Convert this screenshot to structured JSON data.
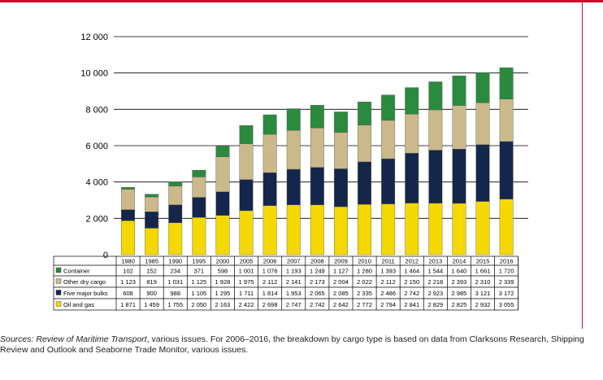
{
  "chart_data": {
    "type": "bar",
    "stacked": true,
    "categories": [
      "1980",
      "1985",
      "1990",
      "1995",
      "2000",
      "2005",
      "2006",
      "2007",
      "2008",
      "2009",
      "2010",
      "2011",
      "2012",
      "2013",
      "2014",
      "2015",
      "2016"
    ],
    "series": [
      {
        "name": "Oil and gas",
        "color": "#f5d800",
        "values": [
          1871,
          1459,
          1755,
          2050,
          2163,
          2422,
          2698,
          2747,
          2742,
          2642,
          2772,
          2794,
          2841,
          2829,
          2825,
          2932,
          3055
        ],
        "labels": [
          "1 871",
          "1 459",
          "1 755",
          "2 050",
          "2 163",
          "2 422",
          "2 698",
          "2 747",
          "2 742",
          "2 642",
          "2 772",
          "2 794",
          "2 841",
          "2 829",
          "2 825",
          "2 932",
          "3 055"
        ]
      },
      {
        "name": "Five major bulks",
        "color": "#14264a",
        "values": [
          608,
          900,
          988,
          1105,
          1295,
          1711,
          1814,
          1953,
          2065,
          2085,
          2335,
          2486,
          2742,
          2923,
          2985,
          3121,
          3172
        ],
        "labels": [
          "608",
          "900",
          "988",
          "1 105",
          "1 295",
          "1 711",
          "1 814",
          "1 953",
          "2 065",
          "2 085",
          "2 335",
          "2 486",
          "2 742",
          "2 923",
          "2 985",
          "3 121",
          "3 172"
        ]
      },
      {
        "name": "Other dry cargo",
        "color": "#cbb98b",
        "values": [
          1123,
          819,
          1031,
          1125,
          1928,
          1975,
          2112,
          2141,
          2173,
          2004,
          2022,
          2112,
          2150,
          2218,
          2393,
          2310,
          2339
        ],
        "labels": [
          "1 123",
          "819",
          "1 031",
          "1 125",
          "1 928",
          "1 975",
          "2 112",
          "2 141",
          "2 173",
          "2 004",
          "2 022",
          "2 112",
          "2 150",
          "2 218",
          "2 393",
          "2 310",
          "2 339"
        ]
      },
      {
        "name": "Container",
        "color": "#2a8a3e",
        "values": [
          102,
          152,
          234,
          371,
          598,
          1001,
          1076,
          1193,
          1249,
          1127,
          1280,
          1393,
          1464,
          1544,
          1640,
          1661,
          1720
        ],
        "labels": [
          "102",
          "152",
          "234",
          "371",
          "598",
          "1 001",
          "1 076",
          "1 193",
          "1 249",
          "1 127",
          "1 280",
          "1 393",
          "1 464",
          "1 544",
          "1 640",
          "1 661",
          "1 720"
        ]
      }
    ],
    "table_row_order": [
      "Container",
      "Other dry cargo",
      "Five major bulks",
      "Oil and gas"
    ],
    "yticks": [
      0,
      2000,
      4000,
      6000,
      8000,
      10000,
      12000
    ],
    "ytick_labels": [
      "0",
      "2 000",
      "4 000",
      "6 000",
      "8 000",
      "10 000",
      "12 000"
    ],
    "ylim": [
      0,
      12000
    ],
    "grid": true,
    "legend": "data table below chart"
  },
  "source_note": {
    "prefix": "Sources:",
    "publication": "Review of Maritime Transport",
    "text": ", various issues. For 2006–2016, the breakdown by cargo type is based on data from Clarksons Research, Shipping Review and Outlook and Seaborne Trade Monitor, various issues."
  },
  "colors": {
    "accent_rule": "#c8102e"
  }
}
